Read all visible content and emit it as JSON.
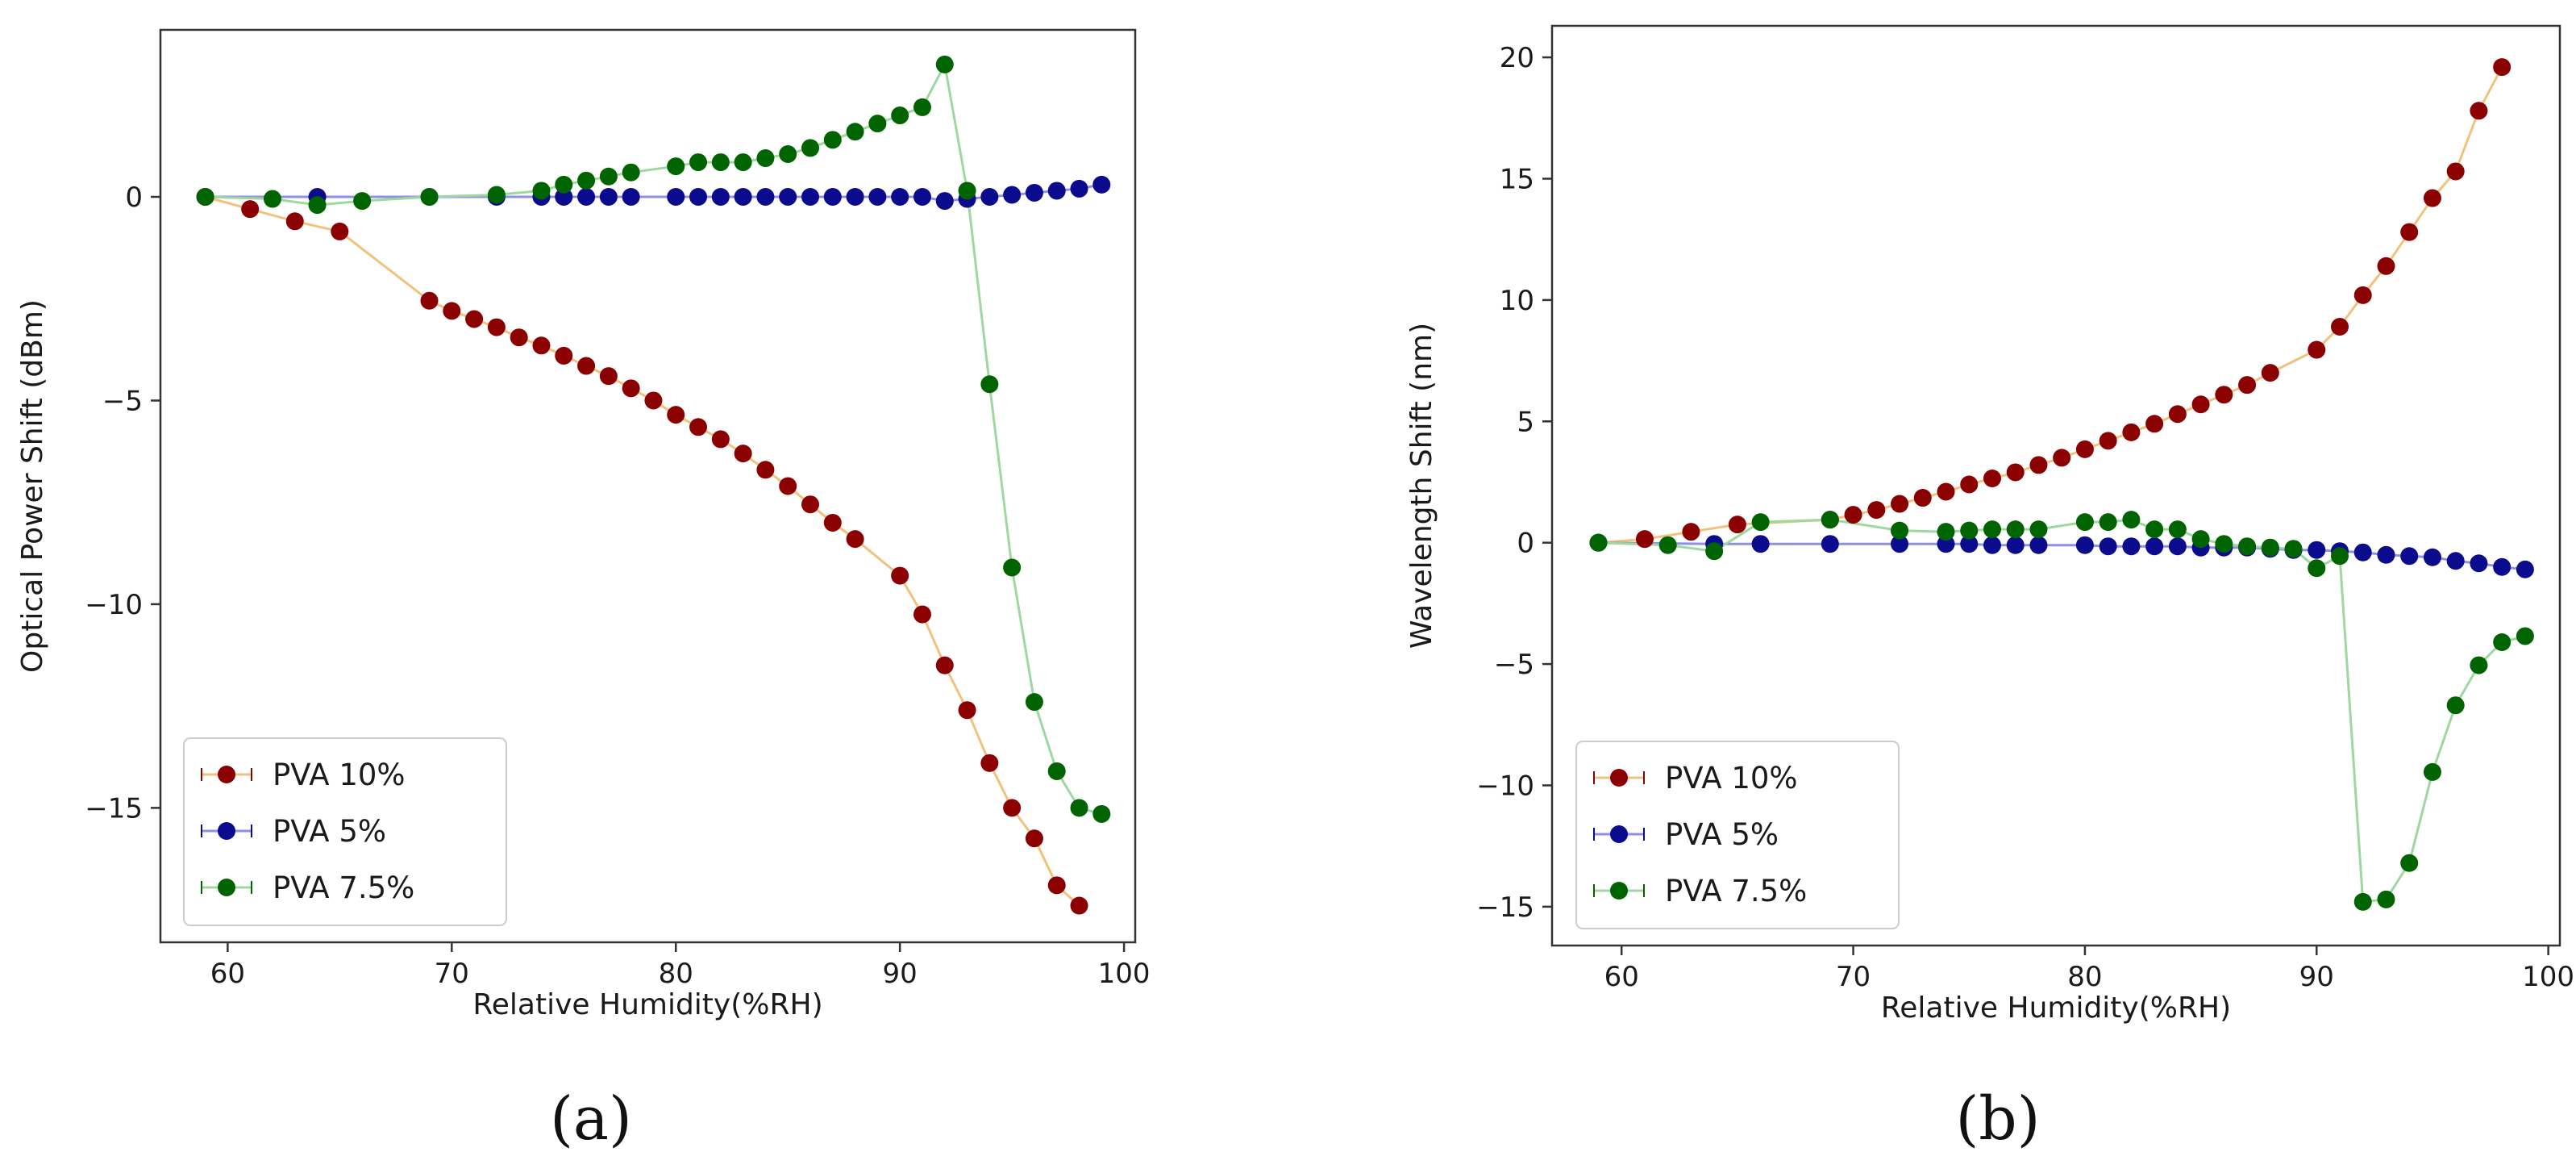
{
  "chart_data": [
    {
      "type": "line",
      "panel_label": "(a)",
      "title": "",
      "xlabel": "Relative Humidity(%RH)",
      "ylabel": "Optical Power Shift (dBm)",
      "xlim": [
        57,
        100.5
      ],
      "ylim": [
        -18.3,
        4.1
      ],
      "xticks": [
        60,
        70,
        80,
        90,
        100
      ],
      "yticks": [
        0,
        -5,
        -10,
        -15
      ],
      "ytick_labels": [
        "0",
        "−5",
        "−10",
        "−15"
      ],
      "grid": false,
      "legend_position": "lower-left",
      "series": [
        {
          "name": "PVA 10%",
          "color": "#8b0000",
          "line_color": "#f2c27d",
          "x": [
            59,
            61,
            63,
            65,
            69,
            70,
            71,
            72,
            73,
            74,
            75,
            76,
            77,
            78,
            79,
            80,
            81,
            82,
            83,
            84,
            85,
            86,
            87,
            88,
            90,
            91,
            92,
            93,
            94,
            95,
            96,
            97,
            98
          ],
          "y": [
            0,
            -0.3,
            -0.6,
            -0.85,
            -2.55,
            -2.8,
            -3.0,
            -3.2,
            -3.45,
            -3.65,
            -3.9,
            -4.15,
            -4.4,
            -4.7,
            -5.0,
            -5.35,
            -5.65,
            -5.95,
            -6.3,
            -6.7,
            -7.1,
            -7.55,
            -8.0,
            -8.4,
            -9.3,
            -10.25,
            -11.5,
            -12.6,
            -13.9,
            -15.0,
            -15.75,
            -16.9,
            -17.4
          ]
        },
        {
          "name": "PVA 5%",
          "color": "#0b0b8e",
          "line_color": "#8f8fe6",
          "x": [
            59,
            64,
            69,
            72,
            74,
            75,
            76,
            77,
            78,
            80,
            81,
            82,
            83,
            84,
            85,
            86,
            87,
            88,
            89,
            90,
            91,
            92,
            93,
            94,
            95,
            96,
            97,
            98,
            99
          ],
          "y": [
            0,
            0,
            0,
            0,
            0,
            0,
            0,
            0,
            0,
            0,
            0,
            0,
            0,
            0,
            0,
            0,
            0,
            0,
            0,
            0,
            0,
            -0.1,
            -0.05,
            0,
            0.05,
            0.1,
            0.15,
            0.2,
            0.3
          ]
        },
        {
          "name": "PVA 7.5%",
          "color": "#006400",
          "line_color": "#9fd89f",
          "x": [
            59,
            62,
            64,
            66,
            69,
            72,
            74,
            75,
            76,
            77,
            78,
            80,
            81,
            82,
            83,
            84,
            85,
            86,
            87,
            88,
            89,
            90,
            91,
            92,
            93,
            94,
            95,
            96,
            97,
            98,
            99
          ],
          "y": [
            0,
            -0.05,
            -0.2,
            -0.1,
            0,
            0.05,
            0.15,
            0.3,
            0.4,
            0.5,
            0.6,
            0.75,
            0.85,
            0.85,
            0.85,
            0.95,
            1.05,
            1.2,
            1.4,
            1.6,
            1.8,
            2.0,
            2.2,
            3.25,
            0.15,
            -4.6,
            -9.1,
            -12.4,
            -14.1,
            -15.0,
            -15.15
          ]
        }
      ]
    },
    {
      "type": "line",
      "panel_label": "(b)",
      "title": "",
      "xlabel": "Relative Humidity(%RH)",
      "ylabel": "Wavelength Shift (nm)",
      "xlim": [
        57,
        100.5
      ],
      "ylim": [
        -16.6,
        21.3
      ],
      "xticks": [
        60,
        70,
        80,
        90,
        100
      ],
      "yticks": [
        20,
        15,
        10,
        5,
        0,
        -5,
        -10,
        -15
      ],
      "ytick_labels": [
        "20",
        "15",
        "10",
        "5",
        "0",
        "−5",
        "−10",
        "−15"
      ],
      "grid": false,
      "legend_position": "lower-left",
      "series": [
        {
          "name": "PVA 10%",
          "color": "#8b0000",
          "line_color": "#f2c27d",
          "x": [
            59,
            61,
            63,
            65,
            69,
            70,
            71,
            72,
            73,
            74,
            75,
            76,
            77,
            78,
            79,
            80,
            81,
            82,
            83,
            84,
            85,
            86,
            87,
            88,
            90,
            91,
            92,
            93,
            94,
            95,
            96,
            97,
            98
          ],
          "y": [
            0,
            0.15,
            0.45,
            0.75,
            0.95,
            1.15,
            1.35,
            1.6,
            1.85,
            2.1,
            2.4,
            2.65,
            2.9,
            3.2,
            3.5,
            3.85,
            4.2,
            4.55,
            4.9,
            5.3,
            5.7,
            6.1,
            6.5,
            7.0,
            7.95,
            8.9,
            10.2,
            11.4,
            12.8,
            14.2,
            15.3,
            17.8,
            19.6
          ]
        },
        {
          "name": "PVA 5%",
          "color": "#0b0b8e",
          "line_color": "#8f8fe6",
          "x": [
            59,
            64,
            66,
            69,
            72,
            74,
            75,
            76,
            77,
            78,
            80,
            81,
            82,
            83,
            84,
            85,
            86,
            87,
            88,
            89,
            90,
            91,
            92,
            93,
            94,
            95,
            96,
            97,
            98,
            99
          ],
          "y": [
            0,
            -0.05,
            -0.05,
            -0.05,
            -0.05,
            -0.05,
            -0.05,
            -0.1,
            -0.1,
            -0.1,
            -0.1,
            -0.15,
            -0.15,
            -0.15,
            -0.15,
            -0.2,
            -0.2,
            -0.2,
            -0.25,
            -0.3,
            -0.3,
            -0.35,
            -0.4,
            -0.5,
            -0.55,
            -0.6,
            -0.75,
            -0.85,
            -1.0,
            -1.1
          ]
        },
        {
          "name": "PVA 7.5%",
          "color": "#006400",
          "line_color": "#9fd89f",
          "x": [
            59,
            62,
            64,
            66,
            69,
            72,
            74,
            75,
            76,
            77,
            78,
            80,
            81,
            82,
            83,
            84,
            85,
            86,
            87,
            88,
            89,
            90,
            91,
            92,
            93,
            94,
            95,
            96,
            97,
            98,
            99
          ],
          "y": [
            0,
            -0.1,
            -0.35,
            0.85,
            0.95,
            0.5,
            0.45,
            0.5,
            0.55,
            0.55,
            0.55,
            0.85,
            0.85,
            0.95,
            0.55,
            0.55,
            0.15,
            -0.05,
            -0.15,
            -0.2,
            -0.25,
            -1.05,
            -0.55,
            -14.8,
            -14.7,
            -13.2,
            -9.45,
            -6.7,
            -5.05,
            -4.1,
            -3.85
          ]
        }
      ]
    }
  ]
}
